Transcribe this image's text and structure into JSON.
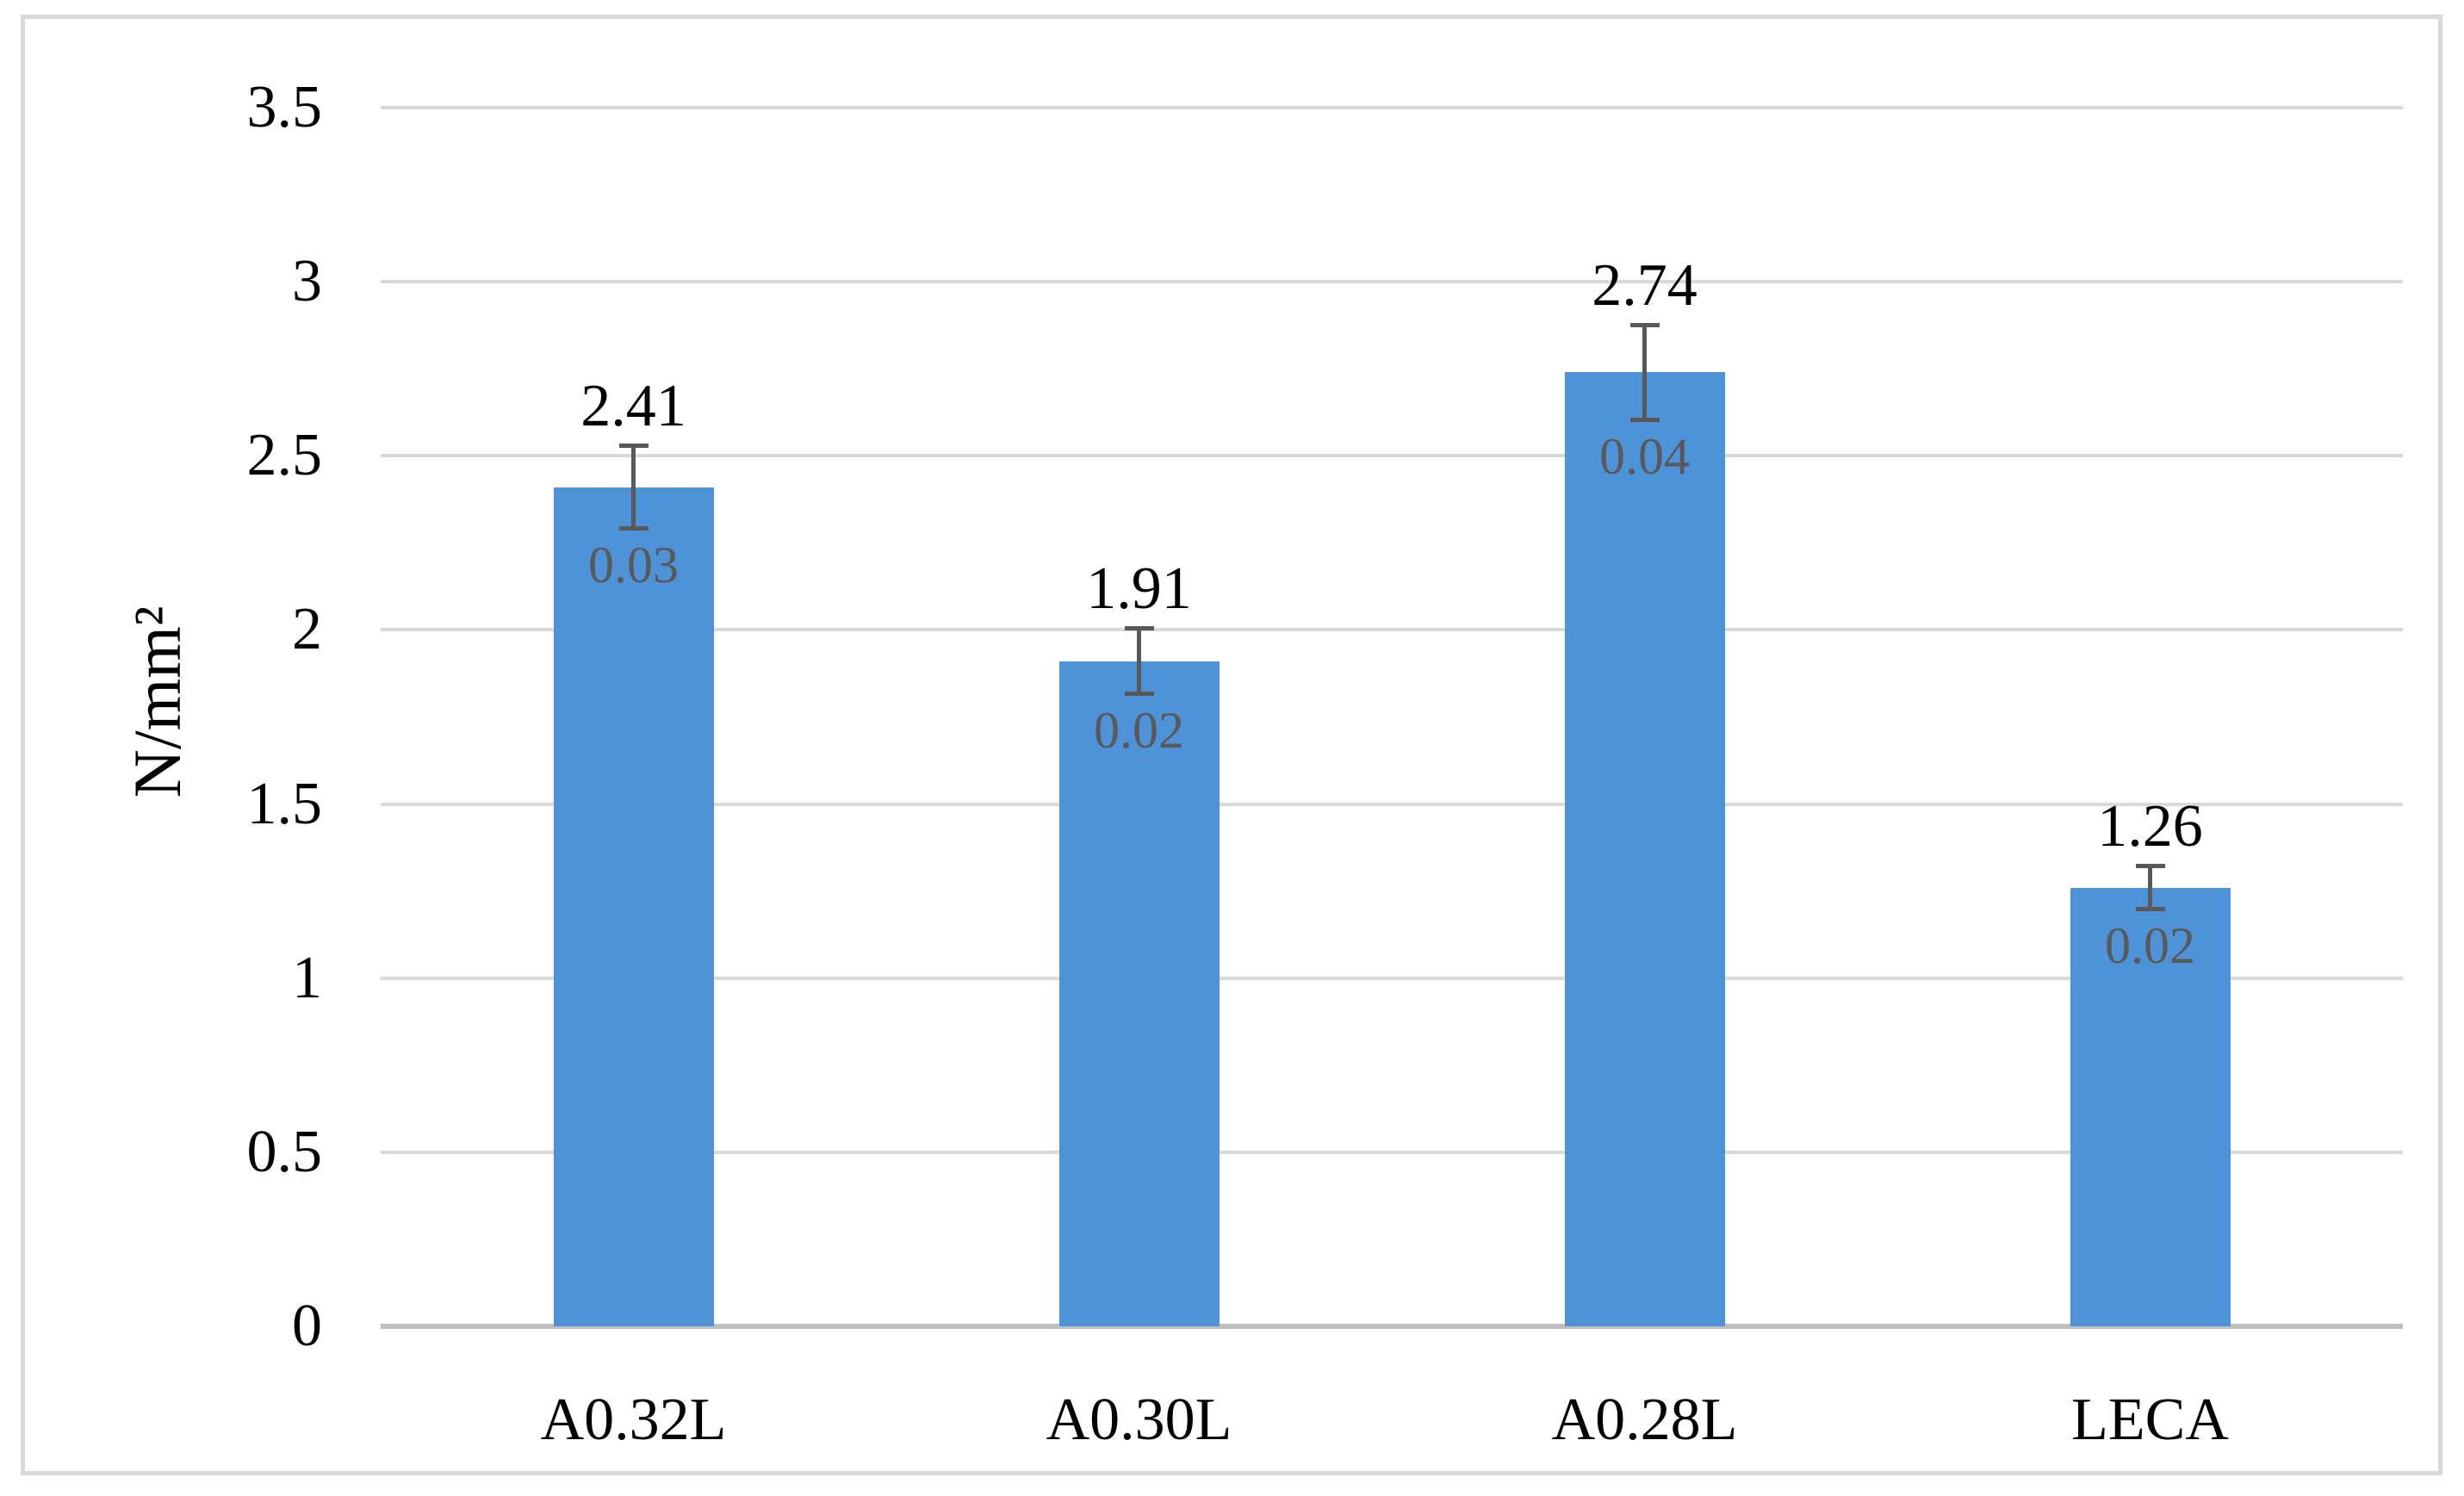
{
  "figure": {
    "background": "#ffffff",
    "border_color": "#d9d9d9"
  },
  "chart_data": {
    "type": "bar",
    "categories": [
      "A0.32L",
      "A0.30L",
      "A0.28L",
      "LECA"
    ],
    "values": [
      2.41,
      1.91,
      2.74,
      1.26
    ],
    "value_labels": [
      "2.41",
      "1.91",
      "2.74",
      "1.26"
    ],
    "error_labels": [
      "0.03",
      "0.02",
      "0.04",
      "0.02"
    ],
    "error_bars": {
      "style": "percentage",
      "percent": 5
    },
    "title": "",
    "xlabel": "",
    "ylabel": "N/mm²",
    "ylim": [
      0,
      3.5
    ],
    "yticks": [
      0,
      0.5,
      1,
      1.5,
      2,
      2.5,
      3,
      3.5
    ],
    "ytick_labels": [
      "0",
      "0.5",
      "1",
      "1.5",
      "2",
      "2.5",
      "3",
      "3.5"
    ],
    "grid": "horizontal",
    "legend": "none",
    "bar_color": "#4e92d8",
    "error_bar_color": "#595959",
    "gridline_color": "#d9d9d9",
    "axis_line_color": "#bfbfbf",
    "value_label_color": "#000000",
    "error_label_color": "#595959"
  }
}
